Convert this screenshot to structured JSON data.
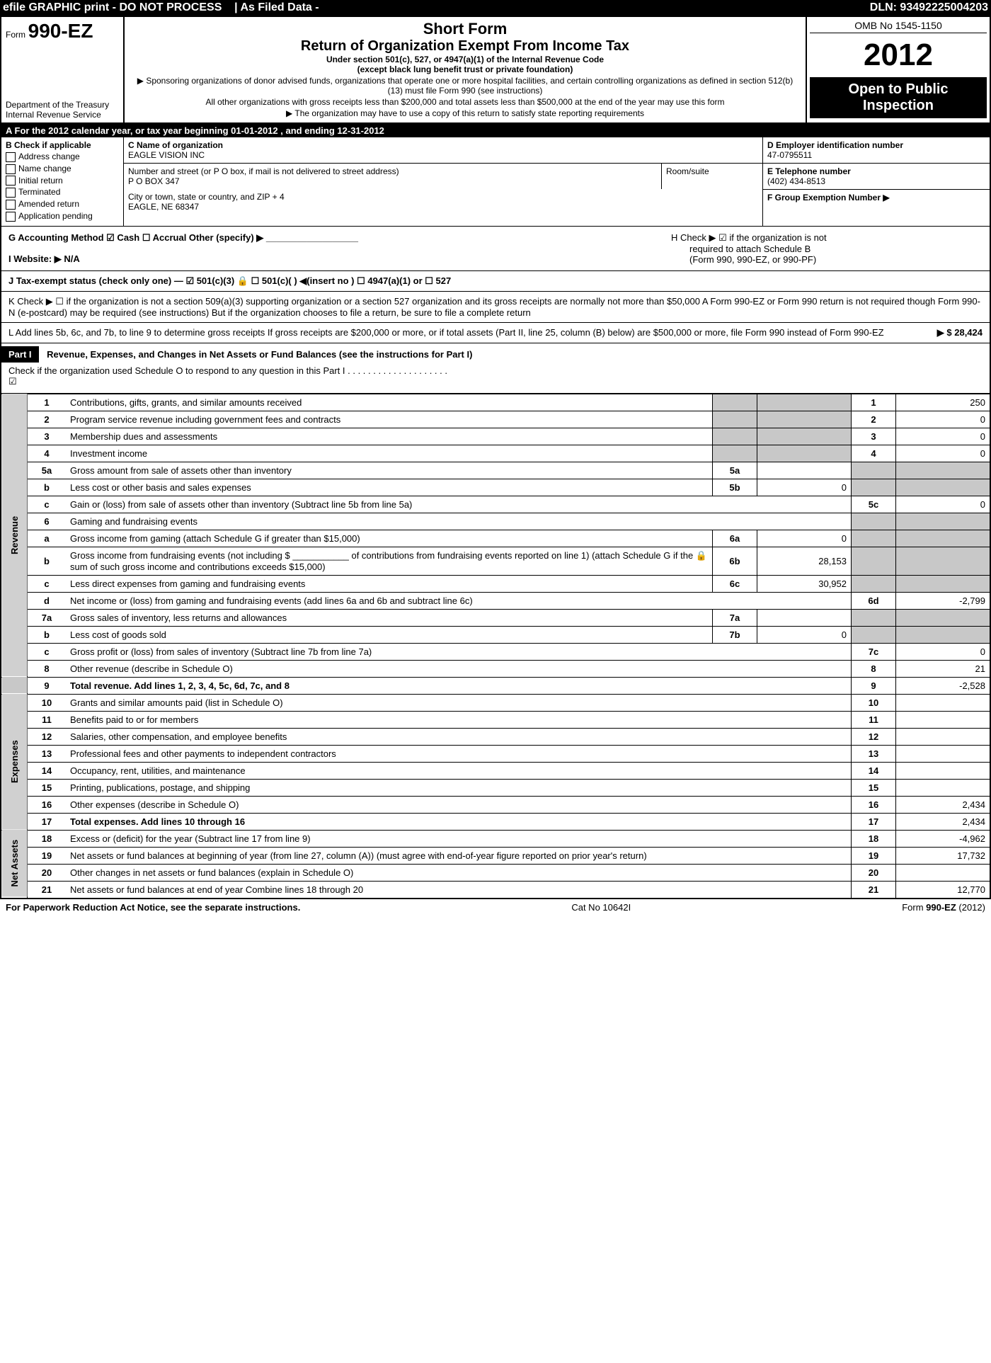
{
  "topbar": {
    "left": "efile GRAPHIC print - DO NOT PROCESS    | As Filed Data -",
    "right": "DLN: 93492225004203"
  },
  "header": {
    "form_prefix": "Form",
    "form_number": "990-EZ",
    "dept_line1": "Department of the Treasury",
    "dept_line2": "Internal Revenue Service",
    "short_form": "Short Form",
    "return_title": "Return of Organization Exempt From Income Tax",
    "subline": "Under section 501(c), 527, or 4947(a)(1) of the Internal Revenue Code",
    "subline2": "(except black lung benefit trust or private foundation)",
    "note1": "▶ Sponsoring organizations of donor advised funds, organizations that operate one or more hospital facilities, and certain controlling organizations as defined in section 512(b)(13) must file Form 990 (see instructions)",
    "note2": "All other organizations with gross receipts less than $200,000 and total assets less than $500,000 at the end of the year may use this form",
    "note3": "▶ The organization may have to use a copy of this return to satisfy state reporting requirements",
    "omb": "OMB No  1545-1150",
    "year": "2012",
    "open_public1": "Open to Public",
    "open_public2": "Inspection"
  },
  "rowA": "A  For the 2012 calendar year, or tax year beginning 01-01-2012            , and ending 12-31-2012",
  "colB": {
    "title": "B  Check if applicable",
    "opts": [
      "Address change",
      "Name change",
      "Initial return",
      "Terminated",
      "Amended return",
      "Application pending"
    ]
  },
  "colC": {
    "name_label": "C Name of organization",
    "name": "EAGLE VISION INC",
    "addr_label": "Number and street (or P  O  box, if mail is not delivered to street address)",
    "room_label": "Room/suite",
    "addr": "P O BOX 347",
    "city_label": "City or town, state or country, and ZIP + 4",
    "city": "EAGLE, NE  68347"
  },
  "colD": {
    "d_label": "D Employer identification number",
    "ein": "47-0795511",
    "e_label": "E Telephone number",
    "phone": "(402) 434-8513",
    "f_label": "F Group Exemption Number   ▶"
  },
  "g_line": "G Accounting Method    ☑ Cash   ☐ Accrual   Other (specify) ▶ __________________",
  "h_line1": "H   Check ▶  ☑  if the organization is not",
  "h_line2": "required to attach Schedule B",
  "h_line3": "(Form 990, 990-EZ, or 990-PF)",
  "i_line": "I Website: ▶  N/A",
  "j_line": "J Tax-exempt status (check only one) — ☑ 501(c)(3) 🔒   ☐ 501(c)(  ) ◀(insert no ) ☐ 4947(a)(1) or  ☐ 527",
  "k_line": "K Check ▶ ☐  if the organization is not a section 509(a)(3) supporting organization or a section 527 organization and its gross receipts are normally not more than $50,000  A Form 990-EZ or Form 990 return is not required though Form 990-N (e-postcard) may be required (see instructions)  But if the organization chooses to file a return, be sure to file a complete return",
  "l_line": "L Add lines 5b, 6c, and 7b, to line 9 to determine gross receipts  If gross receipts are $200,000 or more, or if total assets (Part II, line 25, column (B) below) are $500,000 or more, file Form 990 instead of Form 990-EZ",
  "l_amount": "▶ $ 28,424",
  "partI": {
    "label": "Part I",
    "title": "Revenue, Expenses, and Changes in Net Assets or Fund Balances (see the instructions for Part I)",
    "check_line": "Check if the organization used Schedule O to respond to any question in this Part I  . . . . . . . . . . . . . . . . . . . .",
    "checked": "☑"
  },
  "lines": {
    "1": {
      "desc": "Contributions, gifts, grants, and similar amounts received",
      "box": "1",
      "val": "250"
    },
    "2": {
      "desc": "Program service revenue including government fees and contracts",
      "box": "2",
      "val": "0"
    },
    "3": {
      "desc": "Membership dues and assessments",
      "box": "3",
      "val": "0"
    },
    "4": {
      "desc": "Investment income",
      "box": "4",
      "val": "0"
    },
    "5a": {
      "desc": "Gross amount from sale of assets other than inventory",
      "sub": "5a",
      "subval": ""
    },
    "5b": {
      "desc": "Less  cost or other basis and sales expenses",
      "sub": "5b",
      "subval": "0"
    },
    "5c": {
      "desc": "Gain or (loss) from sale of assets other than inventory (Subtract line 5b from line 5a)",
      "box": "5c",
      "val": "0"
    },
    "6": {
      "desc": "Gaming and fundraising events"
    },
    "6a": {
      "desc": "Gross income from gaming (attach Schedule G if greater than $15,000)",
      "sub": "6a",
      "subval": "0"
    },
    "6b": {
      "desc": "Gross income from fundraising events (not including $ ___________ of contributions from fundraising events reported on line 1) (attach Schedule G if the 🔒 sum of such gross income and contributions exceeds $15,000)",
      "sub": "6b",
      "subval": "28,153"
    },
    "6c": {
      "desc": "Less  direct expenses from gaming and fundraising events",
      "sub": "6c",
      "subval": "30,952"
    },
    "6d": {
      "desc": "Net income or (loss) from gaming and fundraising events (add lines 6a and 6b and subtract line 6c)",
      "box": "6d",
      "val": "-2,799"
    },
    "7a": {
      "desc": "Gross sales of inventory, less returns and allowances",
      "sub": "7a",
      "subval": ""
    },
    "7b": {
      "desc": "Less  cost of goods sold",
      "sub": "7b",
      "subval": "0"
    },
    "7c": {
      "desc": "Gross profit or (loss) from sales of inventory (Subtract line 7b from line 7a)",
      "box": "7c",
      "val": "0"
    },
    "8": {
      "desc": "Other revenue (describe in Schedule O)",
      "box": "8",
      "val": "21"
    },
    "9": {
      "desc": "Total revenue. Add lines 1, 2, 3, 4, 5c, 6d, 7c, and 8",
      "box": "9",
      "val": "-2,528",
      "bold": true
    },
    "10": {
      "desc": "Grants and similar amounts paid (list in Schedule O)",
      "box": "10",
      "val": ""
    },
    "11": {
      "desc": "Benefits paid to or for members",
      "box": "11",
      "val": ""
    },
    "12": {
      "desc": "Salaries, other compensation, and employee benefits",
      "box": "12",
      "val": ""
    },
    "13": {
      "desc": "Professional fees and other payments to independent contractors",
      "box": "13",
      "val": ""
    },
    "14": {
      "desc": "Occupancy, rent, utilities, and maintenance",
      "box": "14",
      "val": ""
    },
    "15": {
      "desc": "Printing, publications, postage, and shipping",
      "box": "15",
      "val": ""
    },
    "16": {
      "desc": "Other expenses (describe in Schedule O)",
      "box": "16",
      "val": "2,434"
    },
    "17": {
      "desc": "Total expenses. Add lines 10 through 16",
      "box": "17",
      "val": "2,434",
      "bold": true
    },
    "18": {
      "desc": "Excess or (deficit) for the year (Subtract line 17 from line 9)",
      "box": "18",
      "val": "-4,962"
    },
    "19": {
      "desc": "Net assets or fund balances at beginning of year (from line 27, column (A)) (must agree with end-of-year figure reported on prior year's return)",
      "box": "19",
      "val": "17,732"
    },
    "20": {
      "desc": "Other changes in net assets or fund balances (explain in Schedule O)",
      "box": "20",
      "val": ""
    },
    "21": {
      "desc": "Net assets or fund balances at end of year  Combine lines 18 through 20",
      "box": "21",
      "val": "12,770"
    }
  },
  "sections": {
    "revenue": "Revenue",
    "expenses": "Expenses",
    "netassets": "Net Assets"
  },
  "footer": {
    "left": "For Paperwork Reduction Act Notice, see the separate instructions.",
    "center": "Cat No  10642I",
    "right": "Form 990-EZ (2012)"
  }
}
